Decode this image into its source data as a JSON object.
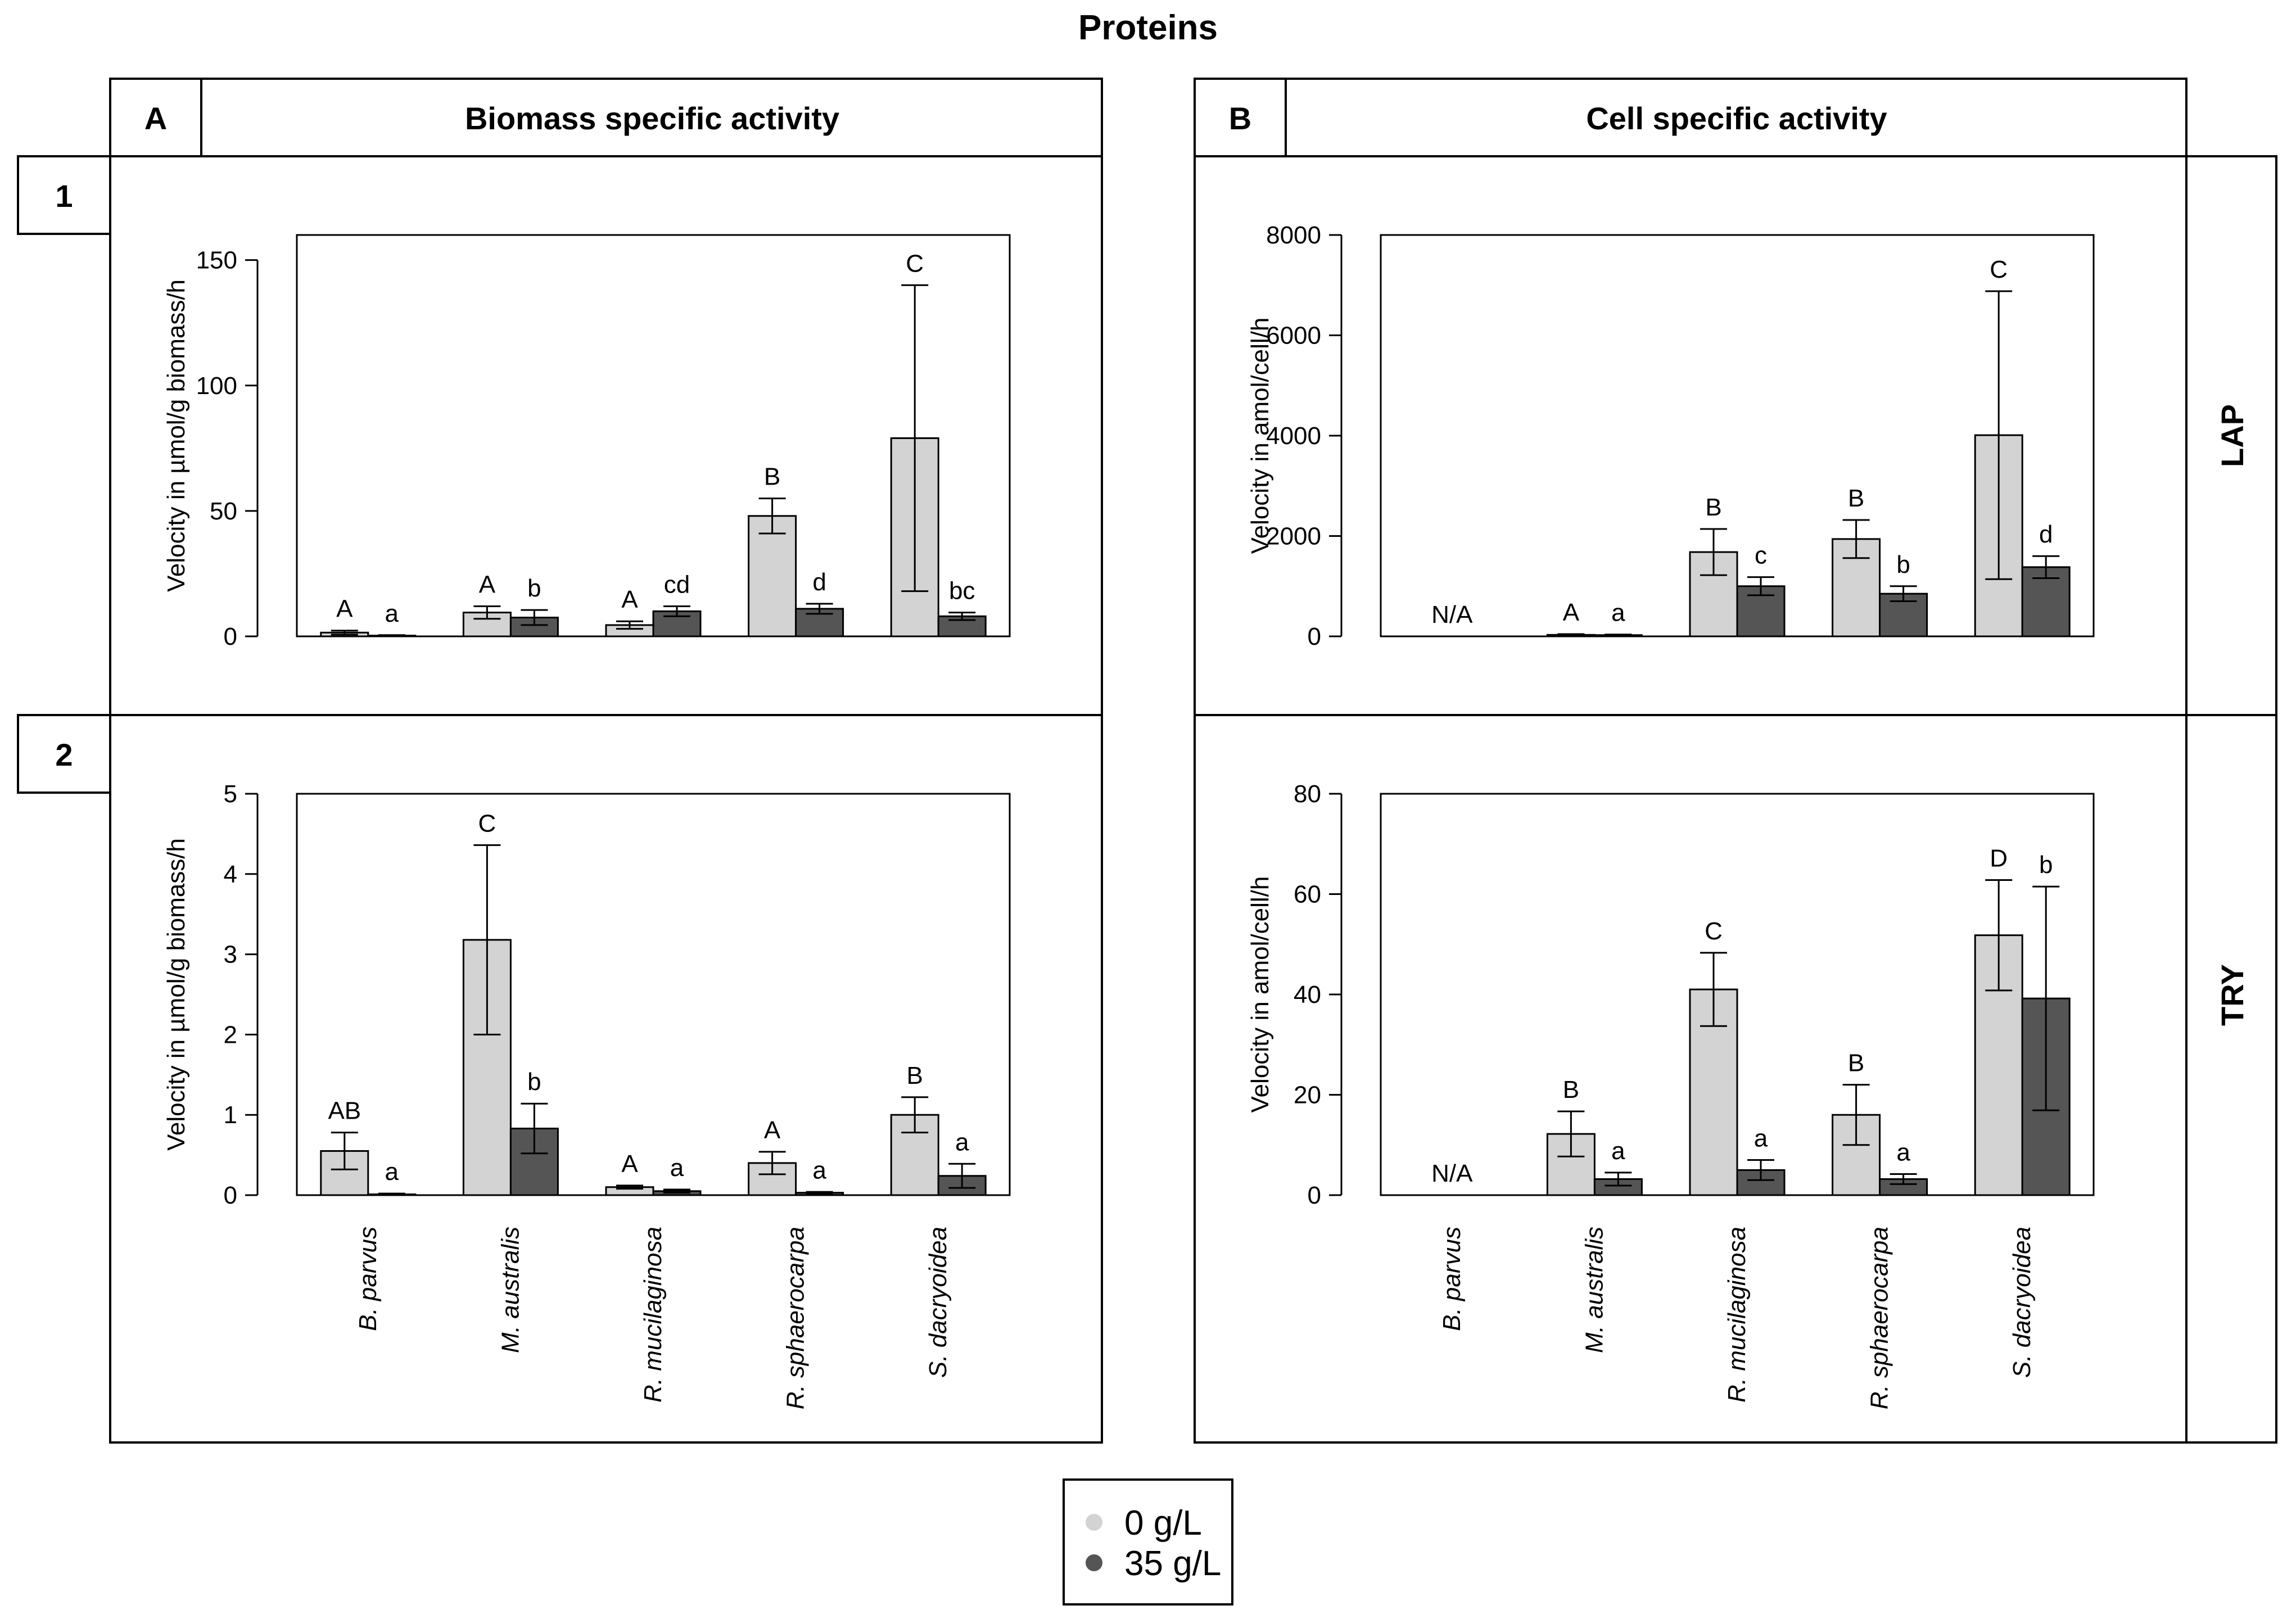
{
  "title": "Proteins",
  "columns": [
    {
      "letter": "A",
      "title": "Biomass specific activity"
    },
    {
      "letter": "B",
      "title": "Cell specific activity"
    }
  ],
  "rows": [
    {
      "number": "1",
      "label": "LAP"
    },
    {
      "number": "2",
      "label": "TRY"
    }
  ],
  "legend": {
    "items": [
      {
        "label": "0 g/L",
        "color": "#d3d3d3"
      },
      {
        "label": "35 g/L",
        "color": "#555555"
      }
    ]
  },
  "colors": {
    "light": "#d3d3d3",
    "dark": "#555555",
    "border": "#000000"
  },
  "chart_data": [
    {
      "id": "A1",
      "type": "bar",
      "ylabel": "Velocity in µmol/g biomass/h",
      "ylim": [
        0,
        160
      ],
      "yticks": [
        0,
        50,
        100,
        150
      ],
      "categories": [
        "B. parvus",
        "M. australis",
        "R. mucilaginosa",
        "R. sphaerocarpa",
        "S. dacryoidea"
      ],
      "series": [
        {
          "name": "0 g/L",
          "values": [
            1.5,
            9.5,
            4.5,
            48,
            79
          ],
          "errors": [
            0.8,
            2.5,
            1.5,
            7,
            61
          ],
          "labels": [
            "A",
            "A",
            "A",
            "B",
            "C"
          ]
        },
        {
          "name": "35 g/L",
          "values": [
            0.3,
            7.5,
            10,
            11,
            8
          ],
          "errors": [
            0.2,
            3,
            2,
            2,
            1.5
          ],
          "labels": [
            "a",
            "b",
            "cd",
            "d",
            "bc"
          ]
        }
      ],
      "na": ""
    },
    {
      "id": "B1",
      "type": "bar",
      "ylabel": "Velocity in amol/cell/h",
      "ylim": [
        0,
        8000
      ],
      "yticks": [
        0,
        2000,
        4000,
        6000,
        8000
      ],
      "categories": [
        "B. parvus",
        "M. australis",
        "R. mucilaginosa",
        "R. sphaerocarpa",
        "S. dacryoidea"
      ],
      "series": [
        {
          "name": "0 g/L",
          "values": [
            null,
            30,
            1680,
            1940,
            4010
          ],
          "errors": [
            null,
            15,
            460,
            380,
            2870
          ],
          "labels": [
            "",
            "A",
            "B",
            "B",
            "C"
          ]
        },
        {
          "name": "35 g/L",
          "values": [
            null,
            25,
            1000,
            850,
            1380
          ],
          "errors": [
            null,
            12,
            180,
            150,
            220
          ],
          "labels": [
            "",
            "a",
            "c",
            "b",
            "d"
          ]
        }
      ],
      "na": "N/A"
    },
    {
      "id": "A2",
      "type": "bar",
      "ylabel": "Velocity in µmol/g biomass/h",
      "ylim": [
        0,
        5
      ],
      "yticks": [
        0,
        1,
        2,
        3,
        4,
        5
      ],
      "categories": [
        "B. parvus",
        "M. australis",
        "R. mucilaginosa",
        "R. sphaerocarpa",
        "S. dacryoidea"
      ],
      "series": [
        {
          "name": "0 g/L",
          "values": [
            0.55,
            3.18,
            0.1,
            0.4,
            1.0
          ],
          "errors": [
            0.23,
            1.18,
            0.02,
            0.14,
            0.22
          ],
          "labels": [
            "AB",
            "C",
            "A",
            "A",
            "B"
          ]
        },
        {
          "name": "35 g/L",
          "values": [
            0.01,
            0.83,
            0.05,
            0.03,
            0.24
          ],
          "errors": [
            0.01,
            0.31,
            0.02,
            0.01,
            0.15
          ],
          "labels": [
            "a",
            "b",
            "a",
            "a",
            "a"
          ]
        }
      ],
      "na": ""
    },
    {
      "id": "B2",
      "type": "bar",
      "ylabel": "Velocity in amol/cell/h",
      "ylim": [
        0,
        80
      ],
      "yticks": [
        0,
        20,
        40,
        60,
        80
      ],
      "categories": [
        "B. parvus",
        "M. australis",
        "R. mucilaginosa",
        "R. sphaerocarpa",
        "S. dacryoidea"
      ],
      "series": [
        {
          "name": "0 g/L",
          "values": [
            null,
            12.2,
            41,
            16,
            51.8
          ],
          "errors": [
            null,
            4.5,
            7.3,
            6,
            11
          ],
          "labels": [
            "",
            "B",
            "C",
            "B",
            "D"
          ]
        },
        {
          "name": "35 g/L",
          "values": [
            null,
            3.2,
            5,
            3.2,
            39.2
          ],
          "errors": [
            null,
            1.3,
            2,
            1,
            22.3
          ],
          "labels": [
            "",
            "a",
            "a",
            "a",
            "b"
          ]
        }
      ],
      "na": "N/A"
    }
  ]
}
